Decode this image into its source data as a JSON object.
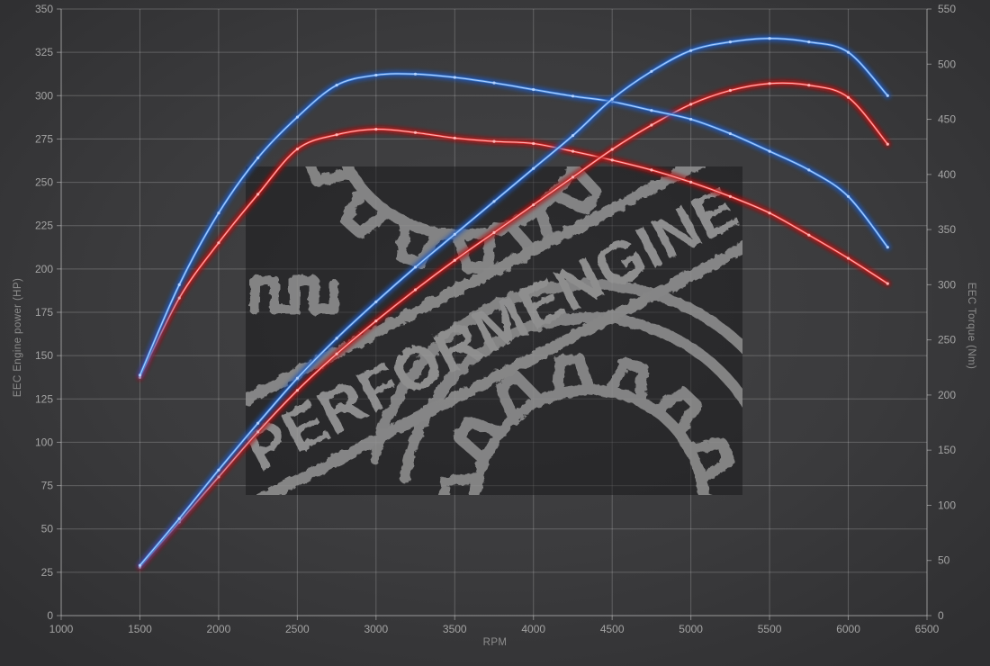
{
  "watermark": {
    "text": "PERFORMENGINE"
  },
  "chart_data": {
    "type": "line",
    "title": "",
    "grid": true,
    "legend": "none",
    "x": {
      "label": "RPM",
      "min": 1000,
      "max": 6500,
      "ticks": [
        1000,
        1500,
        2000,
        2500,
        3000,
        3500,
        4000,
        4500,
        5000,
        5500,
        6000,
        6500
      ]
    },
    "y_left": {
      "label": "EEC Engine power (HP)",
      "min": 0,
      "max": 350,
      "ticks": [
        0,
        25,
        50,
        75,
        100,
        125,
        150,
        175,
        200,
        225,
        250,
        275,
        300,
        325,
        350
      ]
    },
    "y_right": {
      "label": "EEC Torque (Nm)",
      "min": 0,
      "max": 550,
      "ticks": [
        0,
        50,
        100,
        150,
        200,
        250,
        300,
        350,
        400,
        450,
        500,
        550
      ]
    },
    "rpm": [
      1500,
      1750,
      2000,
      2250,
      2500,
      2750,
      3000,
      3250,
      3500,
      3750,
      4000,
      4250,
      4500,
      4750,
      5000,
      5250,
      5500,
      5750,
      6000,
      6250
    ],
    "series": [
      {
        "name": "torque-stock-red",
        "axis": "right",
        "color": "#df2f2f",
        "color_core": "#ffb9b9",
        "color_glow": "#ae1313",
        "values": [
          216,
          288,
          338,
          382,
          423,
          436,
          441,
          438,
          433,
          430,
          428,
          421,
          413,
          404,
          393,
          380,
          365,
          345,
          324,
          301
        ]
      },
      {
        "name": "power-stock-red",
        "axis": "left",
        "color": "#df2f2f",
        "color_core": "#ffb9b9",
        "color_glow": "#ae1313",
        "values": [
          28,
          54,
          80,
          106,
          130,
          151,
          170,
          188,
          205,
          221,
          237,
          253,
          269,
          283,
          295,
          303,
          307,
          306,
          299,
          272
        ]
      },
      {
        "name": "torque-tuned-blue",
        "axis": "right",
        "color": "#4085de",
        "color_core": "#b6d4ff",
        "color_glow": "#1c56b5",
        "values": [
          218,
          300,
          365,
          415,
          452,
          481,
          490,
          491,
          488,
          483,
          477,
          471,
          466,
          458,
          450,
          437,
          421,
          404,
          380,
          334
        ]
      },
      {
        "name": "power-tuned-blue",
        "axis": "left",
        "color": "#4085de",
        "color_core": "#b6d4ff",
        "color_glow": "#1c56b5",
        "values": [
          29,
          56,
          84,
          111,
          137,
          160,
          181,
          201,
          220,
          239,
          258,
          277,
          298,
          314,
          326,
          331,
          333,
          331,
          325,
          300
        ]
      }
    ]
  },
  "colors": {
    "background": "#3a3a3c",
    "gridline": "#d8d8d8",
    "axis_line": "#c8c8c8",
    "tick_text": "#a4a4a4",
    "watermark_art": "#a6a6a6",
    "watermark_box": "#1a1a1c"
  }
}
